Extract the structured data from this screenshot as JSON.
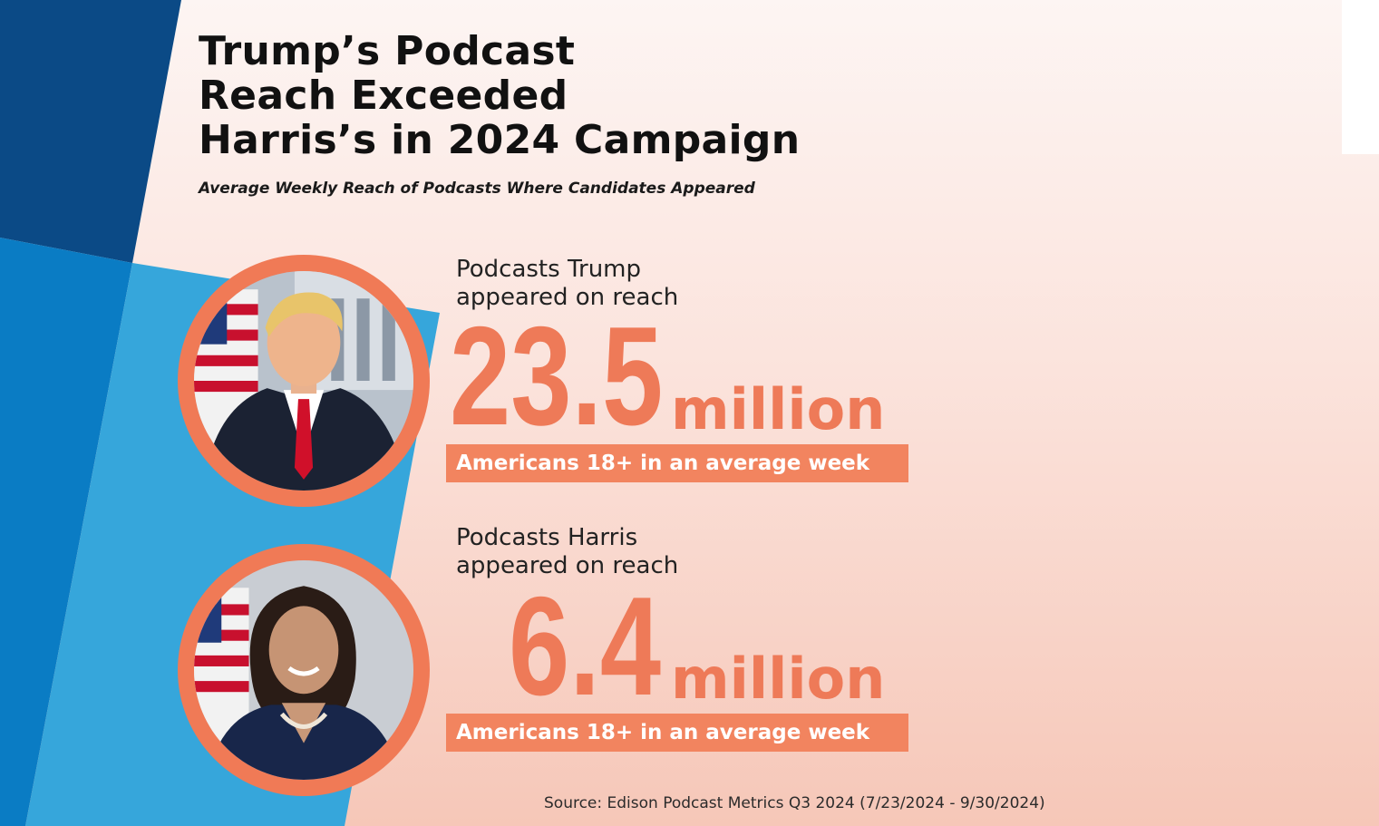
{
  "title_lines": [
    "Trump’s Podcast",
    "Reach Exceeded",
    "Harris’s in 2024 Campaign"
  ],
  "subtitle": "Average Weekly Reach of Podcasts Where Candidates Appeared",
  "candidates": [
    {
      "name": "Trump",
      "intro_lines": [
        "Podcasts Trump",
        "appeared on reach"
      ],
      "reach_value": "23.5",
      "reach_unit": "million",
      "audience": "Americans 18+ in an average week"
    },
    {
      "name": "Harris",
      "intro_lines": [
        "Podcasts Harris",
        "appeared on reach"
      ],
      "reach_value": "6.4",
      "reach_unit": "million",
      "audience": "Americans 18+ in an average week"
    }
  ],
  "source": "Source: Edison Podcast Metrics Q3 2024 (7/23/2024 - 9/30/2024)",
  "colors": {
    "accent_orange": "#ee7a58",
    "band_orange": "#f2845f",
    "navy": "#0b4a86",
    "mid_blue": "#0a7cc4",
    "light_blue": "#36a6db",
    "background_peach": "#fbe3dc"
  }
}
